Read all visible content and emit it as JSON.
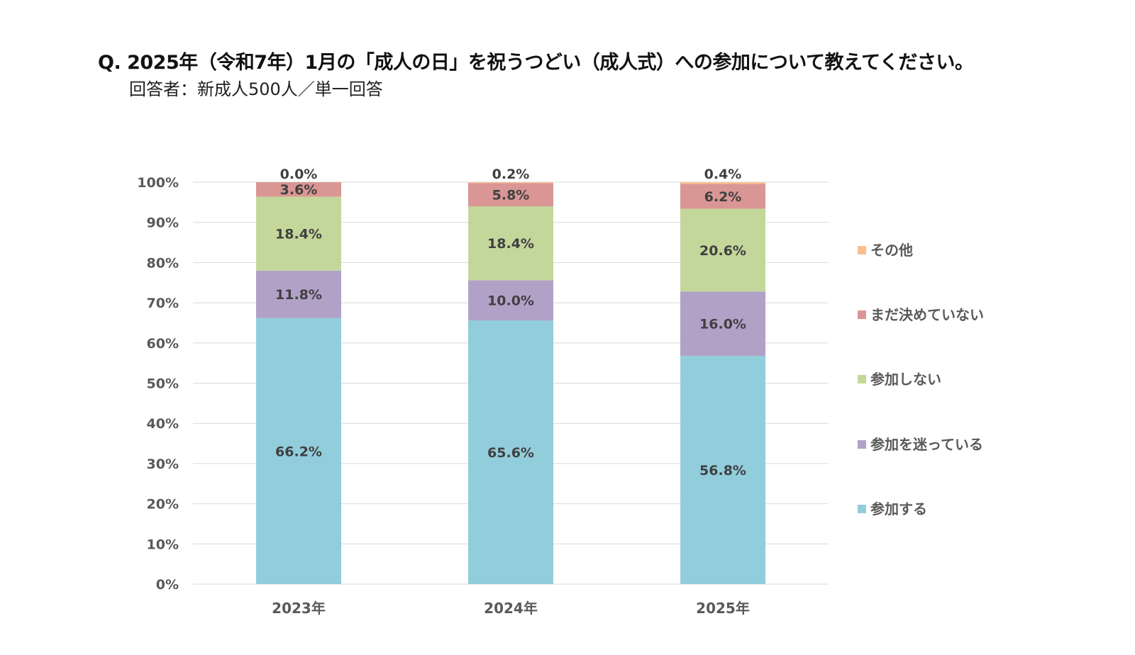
{
  "header": {
    "title": "Q. 2025年（令和7年）1月の「成人の日」を祝うつどい（成人式）への参加について教えてください。",
    "subtitle": "回答者：新成人500人／単一回答"
  },
  "colors": {
    "参加する": "#92CDDC",
    "参加を迷っている": "#B2A1C7",
    "参加しない": "#C4D79B",
    "まだ決めていない": "#DA9694",
    "その他": "#FABF8F",
    "grid": "#D9D9D9",
    "text": "#595959",
    "label": "#404040"
  },
  "chart_data": {
    "type": "bar",
    "stacked": true,
    "title": "Q. 2025年（令和7年）1月の「成人の日」を祝うつどい（成人式）への参加について教えてください。",
    "subtitle": "回答者：新成人500人／単一回答",
    "categories": [
      "2023年",
      "2024年",
      "2025年"
    ],
    "series": [
      {
        "name": "参加する",
        "values": [
          66.2,
          65.6,
          56.8
        ]
      },
      {
        "name": "参加を迷っている",
        "values": [
          11.8,
          10.0,
          16.0
        ]
      },
      {
        "name": "参加しない",
        "values": [
          18.4,
          18.4,
          20.6
        ]
      },
      {
        "name": "まだ決めていない",
        "values": [
          3.6,
          5.8,
          6.2
        ]
      },
      {
        "name": "その他",
        "values": [
          0.0,
          0.2,
          0.4
        ]
      }
    ],
    "data_labels": [
      [
        "66.2%",
        "11.8%",
        "18.4%",
        "3.6%",
        "0.0%"
      ],
      [
        "65.6%",
        "10.0%",
        "18.4%",
        "5.8%",
        "0.2%"
      ],
      [
        "56.8%",
        "16.0%",
        "20.6%",
        "6.2%",
        "0.4%"
      ]
    ],
    "y_ticks": [
      "0%",
      "10%",
      "20%",
      "30%",
      "40%",
      "50%",
      "60%",
      "70%",
      "80%",
      "90%",
      "100%"
    ],
    "ylim": [
      0,
      100
    ],
    "xlabel": "",
    "ylabel": "",
    "grid": true,
    "legend": {
      "placement": "right",
      "order": [
        "その他",
        "まだ決めていない",
        "参加しない",
        "参加を迷っている",
        "参加する"
      ]
    }
  }
}
